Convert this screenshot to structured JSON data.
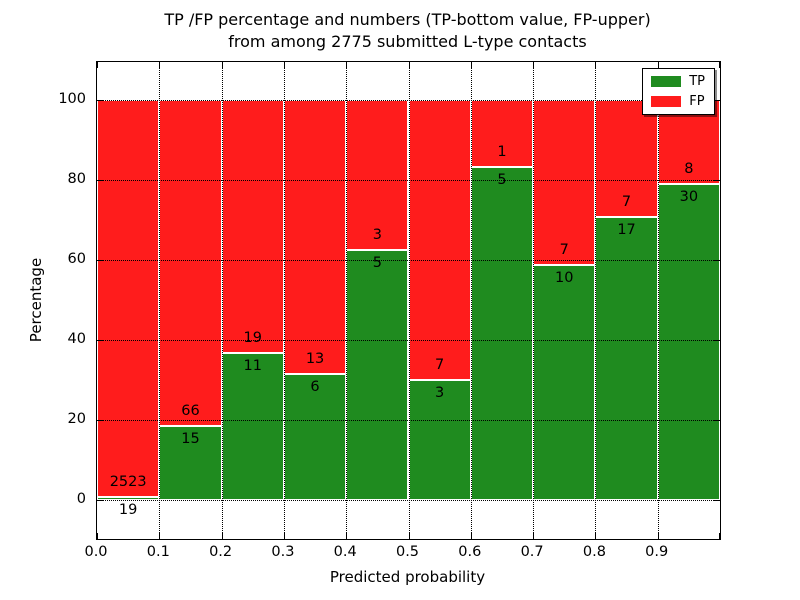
{
  "title": {
    "line1": "TP /FP percentage and numbers (TP-bottom value, FP-upper)",
    "line2": "from among 2775 submitted L-type contacts"
  },
  "axes_text": {
    "xlabel": "Predicted probability",
    "ylabel": "Percentage",
    "xtick_labels": [
      "0.0",
      "0.1",
      "0.2",
      "0.3",
      "0.4",
      "0.5",
      "0.6",
      "0.7",
      "0.8",
      "0.9"
    ],
    "ytick_values": [
      0,
      20,
      40,
      60,
      80,
      100
    ]
  },
  "legend": {
    "items": [
      {
        "label": "TP",
        "color": "#1f8b1f"
      },
      {
        "label": "FP",
        "color": "#ff1c1c"
      }
    ]
  },
  "chart_data": {
    "type": "bar",
    "stacked": true,
    "title": "TP /FP percentage and numbers (TP-bottom value, FP-upper) from among 2775 submitted L-type contacts",
    "xlabel": "Predicted probability",
    "ylabel": "Percentage",
    "xlim": [
      0.0,
      1.0
    ],
    "ylim": [
      -10,
      110
    ],
    "grid": true,
    "legend_position": "upper right",
    "total_submitted": 2775,
    "bin_edges": [
      0.0,
      0.1,
      0.2,
      0.3,
      0.4,
      0.5,
      0.6,
      0.7,
      0.8,
      0.9,
      1.0
    ],
    "categories": [
      "0.0-0.1",
      "0.1-0.2",
      "0.2-0.3",
      "0.3-0.4",
      "0.4-0.5",
      "0.5-0.6",
      "0.6-0.7",
      "0.7-0.8",
      "0.8-0.9",
      "0.9-1.0"
    ],
    "series": [
      {
        "name": "TP",
        "color": "#1f8b1f",
        "counts": [
          19,
          15,
          11,
          6,
          5,
          3,
          5,
          10,
          17,
          30
        ],
        "pct": [
          0.75,
          18.52,
          36.67,
          31.58,
          62.5,
          30.0,
          83.33,
          58.82,
          70.83,
          78.95
        ]
      },
      {
        "name": "FP",
        "color": "#ff1c1c",
        "counts": [
          2523,
          66,
          19,
          13,
          3,
          7,
          1,
          7,
          7,
          8
        ],
        "pct": [
          99.25,
          81.48,
          63.33,
          68.42,
          37.5,
          70.0,
          16.67,
          41.18,
          29.17,
          21.05
        ]
      }
    ]
  }
}
